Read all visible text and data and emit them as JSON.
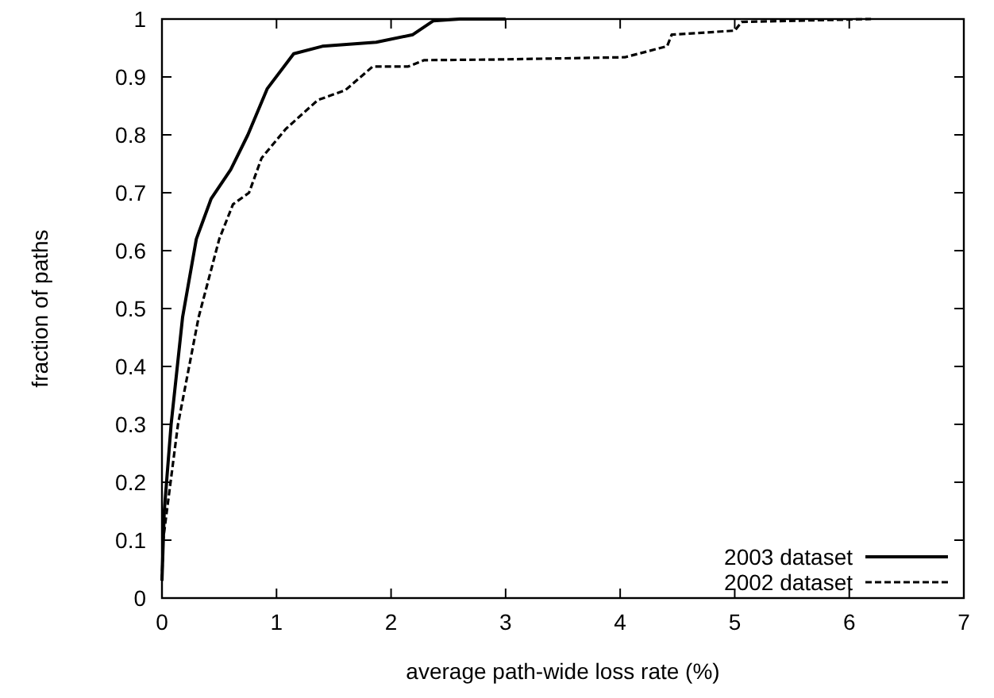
{
  "chart_data": {
    "type": "line",
    "xlabel": "average path-wide loss rate (%)",
    "ylabel": "fraction of paths",
    "xlim": [
      0,
      7
    ],
    "xticks": [
      0,
      1,
      2,
      3,
      4,
      5,
      6,
      7
    ],
    "ylim": [
      0,
      1
    ],
    "yticks": [
      0,
      0.1,
      0.2,
      0.3,
      0.4,
      0.5,
      0.6,
      0.7,
      0.8,
      0.9,
      1
    ],
    "grid": false,
    "legend": "bottom right",
    "series": [
      {
        "name": "2003 dataset",
        "color": "#000000",
        "line_style": "solid",
        "x": [
          0,
          0.02,
          0.04,
          0.08,
          0.18,
          0.3,
          0.43,
          0.6,
          0.75,
          0.92,
          1.15,
          1.4,
          1.87,
          2.19,
          2.37,
          2.6,
          3.0
        ],
        "values": [
          0.03,
          0.15,
          0.2,
          0.3,
          0.485,
          0.62,
          0.69,
          0.74,
          0.8,
          0.88,
          0.94,
          0.953,
          0.96,
          0.973,
          0.997,
          1.0,
          1.0
        ]
      },
      {
        "name": "2002 dataset",
        "color": "#000000",
        "line_style": "dashed",
        "x": [
          0,
          0.01,
          0.14,
          0.32,
          0.5,
          0.62,
          0.76,
          0.87,
          1.08,
          1.36,
          1.6,
          1.84,
          2.15,
          2.29,
          2.88,
          4.04,
          4.41,
          4.45,
          5.0,
          5.06,
          6.19
        ],
        "values": [
          0.03,
          0.1,
          0.3,
          0.485,
          0.62,
          0.68,
          0.7,
          0.76,
          0.81,
          0.86,
          0.877,
          0.918,
          0.918,
          0.929,
          0.93,
          0.934,
          0.953,
          0.973,
          0.98,
          0.995,
          1.0
        ]
      }
    ]
  }
}
